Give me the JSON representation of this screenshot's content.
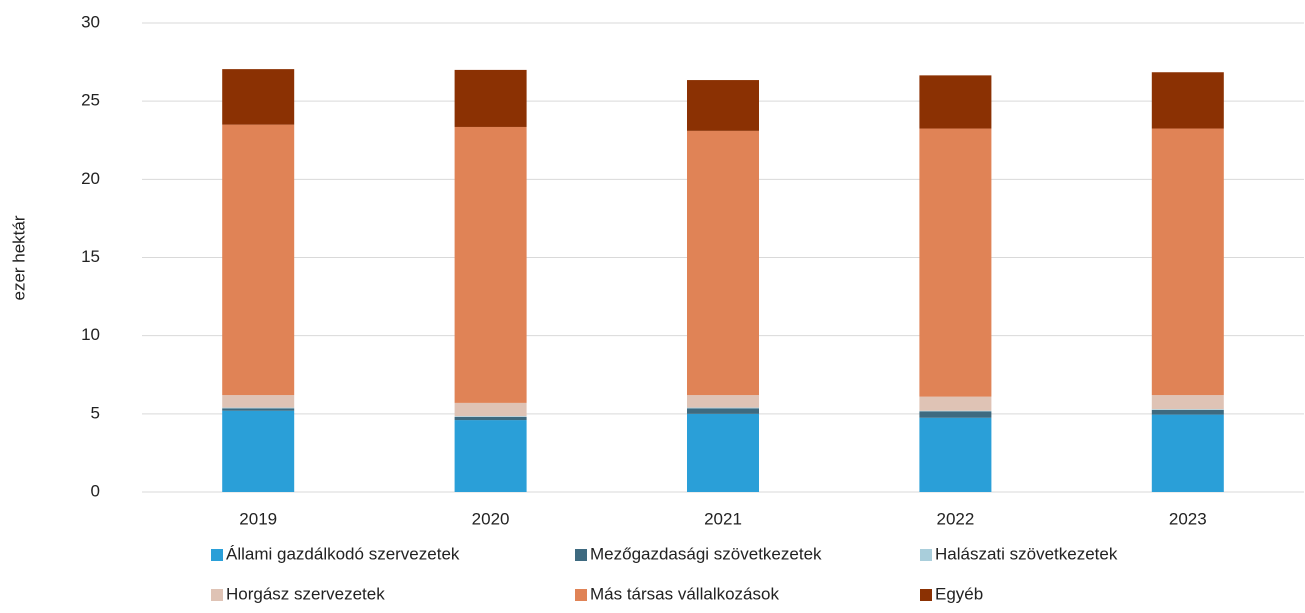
{
  "chart_data": {
    "type": "stacked_bar",
    "y_label": "ezer hektár",
    "categories": [
      "2019",
      "2020",
      "2021",
      "2022",
      "2023"
    ],
    "series": [
      {
        "name": "Állami gazdálkodó szervezetek",
        "color": "#2a9fd8",
        "values": [
          5.2,
          4.6,
          5.0,
          4.75,
          4.95
        ]
      },
      {
        "name": "Mezőgazdasági szövetkezetek",
        "color": "#3e6a80",
        "values": [
          0.15,
          0.2,
          0.35,
          0.4,
          0.3
        ]
      },
      {
        "name": "Halászati szövetkezetek",
        "color": "#a9cedb",
        "values": [
          0.05,
          0.05,
          0.05,
          0.05,
          0.05
        ]
      },
      {
        "name": "Horgász szervezetek",
        "color": "#dfc3b5",
        "values": [
          0.8,
          0.85,
          0.8,
          0.9,
          0.9
        ]
      },
      {
        "name": "Más társas vállalkozások",
        "color": "#e08356",
        "values": [
          17.3,
          17.65,
          16.9,
          17.15,
          17.05
        ]
      },
      {
        "name": "Egyéb",
        "color": "#8b3103",
        "values": [
          3.55,
          3.65,
          3.25,
          3.4,
          3.6
        ]
      }
    ],
    "ylim": [
      0,
      30
    ],
    "yticks": [
      0,
      5,
      10,
      15,
      20,
      25,
      30
    ],
    "grid": true
  }
}
